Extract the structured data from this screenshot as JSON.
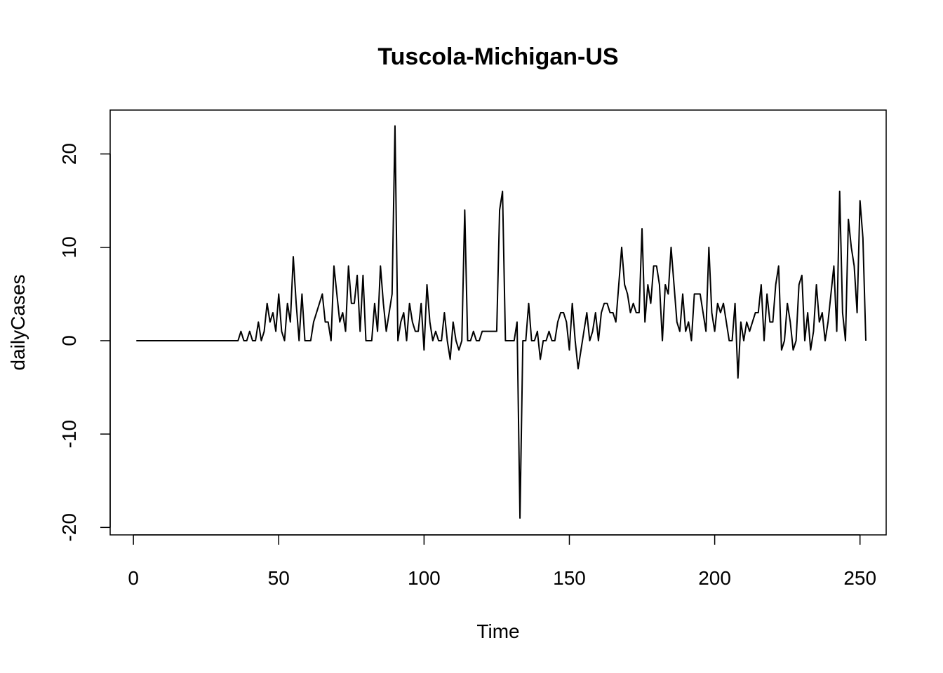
{
  "chart_data": {
    "type": "line",
    "title": "Tuscola-Michigan-US",
    "xlabel": "Time",
    "ylabel": "dailyCases",
    "xlim": [
      -8,
      259
    ],
    "ylim": [
      -20.8,
      24.7
    ],
    "xticks": [
      0,
      50,
      100,
      150,
      200,
      250
    ],
    "yticks": [
      -20,
      -10,
      0,
      10,
      20
    ],
    "grid": false,
    "legend": "none",
    "line_color": "#000000",
    "x_start": 1,
    "values": [
      0,
      0,
      0,
      0,
      0,
      0,
      0,
      0,
      0,
      0,
      0,
      0,
      0,
      0,
      0,
      0,
      0,
      0,
      0,
      0,
      0,
      0,
      0,
      0,
      0,
      0,
      0,
      0,
      0,
      0,
      0,
      0,
      0,
      0,
      0,
      0,
      1,
      0,
      0,
      1,
      0,
      0,
      2,
      0,
      1,
      4,
      2,
      3,
      1,
      5,
      1,
      0,
      4,
      2,
      9,
      4,
      0,
      5,
      0,
      0,
      0,
      2,
      3,
      4,
      5,
      2,
      2,
      0,
      8,
      5,
      2,
      3,
      1,
      8,
      4,
      4,
      7,
      1,
      7,
      0,
      0,
      0,
      4,
      1,
      8,
      4,
      1,
      3,
      5,
      23,
      0,
      2,
      3,
      0,
      4,
      2,
      1,
      1,
      4,
      -1,
      6,
      2,
      0,
      1,
      0,
      0,
      3,
      0,
      -2,
      2,
      0,
      -1,
      0,
      14,
      0,
      0,
      1,
      0,
      0,
      1,
      1,
      1,
      1,
      1,
      1,
      14,
      16,
      0,
      0,
      0,
      0,
      2,
      -19,
      0,
      0,
      4,
      0,
      0,
      1,
      -2,
      0,
      0,
      1,
      0,
      0,
      2,
      3,
      3,
      2,
      -1,
      4,
      0,
      -3,
      -1,
      1,
      3,
      0,
      1,
      3,
      0,
      3,
      4,
      4,
      3,
      3,
      2,
      6,
      10,
      6,
      5,
      3,
      4,
      3,
      3,
      12,
      2,
      6,
      4,
      8,
      8,
      6,
      0,
      6,
      5,
      10,
      6,
      2,
      1,
      5,
      1,
      2,
      0,
      5,
      5,
      5,
      3,
      1,
      10,
      3,
      1,
      4,
      3,
      4,
      2,
      0,
      0,
      4,
      -4,
      2,
      0,
      2,
      1,
      2,
      3,
      3,
      6,
      0,
      5,
      2,
      2,
      6,
      8,
      -1,
      0,
      4,
      2,
      -1,
      0,
      6,
      7,
      0,
      3,
      -1,
      1,
      6,
      2,
      3,
      0,
      2,
      5,
      8,
      1,
      16,
      3,
      0,
      13,
      10,
      8,
      3,
      15,
      11,
      0
    ]
  }
}
